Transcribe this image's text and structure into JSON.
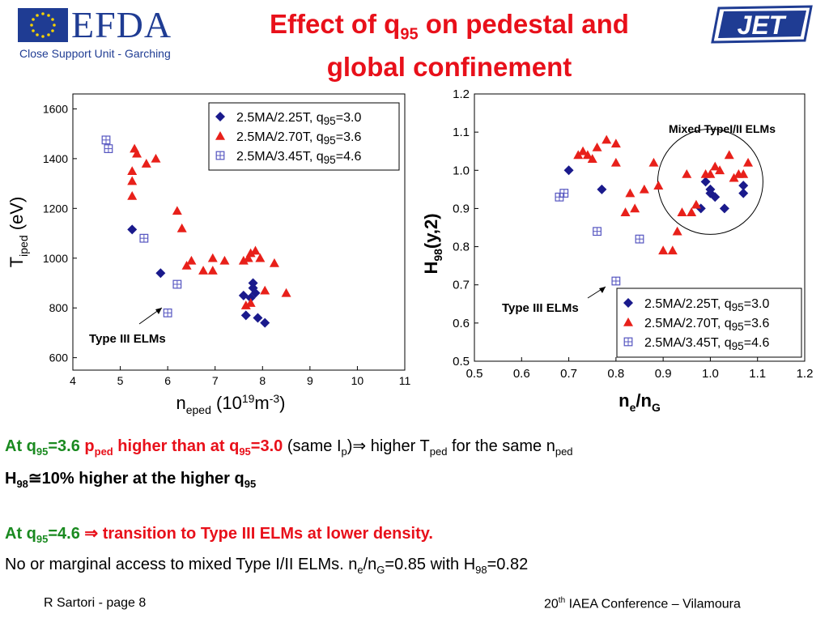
{
  "header": {
    "efda_logo_text": "EFDA",
    "efda_subtitle": "Close Support Unit - Garching",
    "jet_logo_text": "JET",
    "title_pre": "Effect of q",
    "title_sub": "95",
    "title_post": " on pedestal and",
    "title_line2": "global confinement"
  },
  "chart_data": [
    {
      "type": "scatter",
      "title": "",
      "xlabel_main": "n",
      "xlabel_sub": "eped",
      "xlabel_units": " (10",
      "xlabel_exp": "19",
      "xlabel_units2": "m",
      "xlabel_exp2": "-3",
      "xlabel_close": ")",
      "ylabel_main": "T",
      "ylabel_sub": "iped",
      "ylabel_units": " (eV)",
      "xlim": [
        4,
        11
      ],
      "ylim": [
        550,
        1660
      ],
      "xticks": [
        "4",
        "5",
        "6",
        "7",
        "8",
        "9",
        "10",
        "11"
      ],
      "yticks": [
        "600",
        "800",
        "1000",
        "1200",
        "1400",
        "1600"
      ],
      "legend_position": "top-right",
      "annotation": "Type III ELMs",
      "series": [
        {
          "name": "2.5MA/2.25T, q95=3.0",
          "marker": "diamond",
          "color": "#1a1a8c",
          "points": [
            [
              5.25,
              1115
            ],
            [
              5.85,
              940
            ],
            [
              7.6,
              850
            ],
            [
              7.75,
              840
            ],
            [
              7.8,
              880
            ],
            [
              7.8,
              900
            ],
            [
              7.65,
              770
            ],
            [
              7.85,
              860
            ],
            [
              7.9,
              760
            ],
            [
              8.05,
              740
            ]
          ]
        },
        {
          "name": "2.5MA/2.70T, q95=3.6",
          "marker": "triangle",
          "color": "#e8201a",
          "points": [
            [
              5.3,
              1440
            ],
            [
              5.35,
              1420
            ],
            [
              5.55,
              1380
            ],
            [
              5.75,
              1400
            ],
            [
              5.25,
              1350
            ],
            [
              5.25,
              1310
            ],
            [
              5.25,
              1250
            ],
            [
              6.2,
              1190
            ],
            [
              6.3,
              1120
            ],
            [
              6.4,
              970
            ],
            [
              6.5,
              990
            ],
            [
              6.75,
              950
            ],
            [
              6.95,
              1000
            ],
            [
              6.95,
              950
            ],
            [
              7.2,
              990
            ],
            [
              7.6,
              990
            ],
            [
              7.7,
              1000
            ],
            [
              7.75,
              1020
            ],
            [
              7.85,
              1030
            ],
            [
              7.95,
              1000
            ],
            [
              8.25,
              980
            ],
            [
              8.05,
              870
            ],
            [
              8.5,
              860
            ],
            [
              7.65,
              810
            ],
            [
              7.75,
              820
            ]
          ]
        },
        {
          "name": "2.5MA/3.45T, q95=4.6",
          "marker": "square",
          "color": "#5555c0",
          "points": [
            [
              4.7,
              1475
            ],
            [
              4.75,
              1440
            ],
            [
              5.5,
              1080
            ],
            [
              6.2,
              895
            ],
            [
              6.0,
              780
            ]
          ]
        }
      ]
    },
    {
      "type": "scatter",
      "title": "",
      "xlabel_main": "n",
      "xlabel_sub1": "e",
      "xlabel_mid": "/n",
      "xlabel_sub2": "G",
      "ylabel_main": "H",
      "ylabel_sub": "98",
      "ylabel_post": "(y,2)",
      "xlim": [
        0.5,
        1.2
      ],
      "ylim": [
        0.5,
        1.2
      ],
      "xticks": [
        "0.5",
        "0.6",
        "0.7",
        "0.8",
        "0.9",
        "1.0",
        "1.1",
        "1.2"
      ],
      "yticks": [
        "0.5",
        "0.6",
        "0.7",
        "0.8",
        "0.9",
        "1.0",
        "1.1",
        "1.2"
      ],
      "legend_position": "bottom-right",
      "annotation": "Type III ELMs",
      "annotation2": "Mixed TypeI/II ELMs",
      "series": [
        {
          "name": "2.5MA/2.25T, q95=3.0",
          "marker": "diamond",
          "color": "#1a1a8c",
          "points": [
            [
              0.7,
              1.0
            ],
            [
              0.77,
              0.95
            ],
            [
              0.99,
              0.97
            ],
            [
              1.0,
              0.94
            ],
            [
              1.0,
              0.95
            ],
            [
              1.01,
              0.93
            ],
            [
              0.98,
              0.9
            ],
            [
              1.03,
              0.9
            ],
            [
              1.07,
              0.96
            ],
            [
              1.07,
              0.94
            ]
          ]
        },
        {
          "name": "2.5MA/2.70T, q95=3.6",
          "marker": "triangle",
          "color": "#e8201a",
          "points": [
            [
              0.72,
              1.04
            ],
            [
              0.73,
              1.05
            ],
            [
              0.74,
              1.04
            ],
            [
              0.75,
              1.03
            ],
            [
              0.76,
              1.06
            ],
            [
              0.78,
              1.08
            ],
            [
              0.8,
              1.07
            ],
            [
              0.8,
              1.02
            ],
            [
              0.82,
              0.89
            ],
            [
              0.83,
              0.94
            ],
            [
              0.84,
              0.9
            ],
            [
              0.86,
              0.95
            ],
            [
              0.88,
              1.02
            ],
            [
              0.89,
              0.96
            ],
            [
              0.9,
              0.79
            ],
            [
              0.92,
              0.79
            ],
            [
              0.93,
              0.84
            ],
            [
              0.94,
              0.89
            ],
            [
              0.95,
              0.99
            ],
            [
              0.96,
              0.89
            ],
            [
              0.97,
              0.91
            ],
            [
              0.99,
              0.99
            ],
            [
              1.0,
              0.99
            ],
            [
              1.01,
              1.01
            ],
            [
              1.02,
              1.0
            ],
            [
              1.04,
              1.04
            ],
            [
              1.05,
              0.98
            ],
            [
              1.06,
              0.99
            ],
            [
              1.07,
              0.99
            ],
            [
              1.08,
              1.02
            ]
          ]
        },
        {
          "name": "2.5MA/3.45T, q95=4.6",
          "marker": "square",
          "color": "#5555c0",
          "points": [
            [
              0.68,
              0.93
            ],
            [
              0.69,
              0.94
            ],
            [
              0.76,
              0.84
            ],
            [
              0.85,
              0.82
            ],
            [
              0.8,
              0.71
            ]
          ]
        }
      ]
    }
  ],
  "text": {
    "l1_a": "At q",
    "l1_a_sub": "95",
    "l1_a2": "=3.6 ",
    "l1_b": "p",
    "l1_b_sub": "ped",
    "l1_c": " higher than at q",
    "l1_c_sub": "95",
    "l1_c2": "=3.0",
    "l1_d": " (same I",
    "l1_d_sub": "p",
    "l1_d2": ")⇒ higher T",
    "l1_d_sub2": "ped",
    "l1_d3": " for the same n",
    "l1_d_sub3": "ped",
    "l2_a": "H",
    "l2_a_sub": "98",
    "l2_b": "≅10% higher at the higher q",
    "l2_b_sub": "95",
    "l3_a": "At q",
    "l3_a_sub": "95",
    "l3_a2": "=4.6 ",
    "l3_b": "⇒ transition to Type III ELMs at lower density.",
    "l4_a": "No or marginal access to mixed Type I/II ELMs. n",
    "l4_a_sub": "e",
    "l4_b": "/n",
    "l4_b_sub": "G",
    "l4_c": "=0.85 with H",
    "l4_c_sub": "98",
    "l4_d": "=0.82"
  },
  "footer": {
    "left": "R Sartori  - page 8",
    "right_a": "20",
    "right_sup": "th",
    "right_b": " IAEA Conference – Vilamoura"
  },
  "colors": {
    "title": "#e8101a",
    "efda_blue": "#1f3c93",
    "green": "#1a8a20"
  }
}
